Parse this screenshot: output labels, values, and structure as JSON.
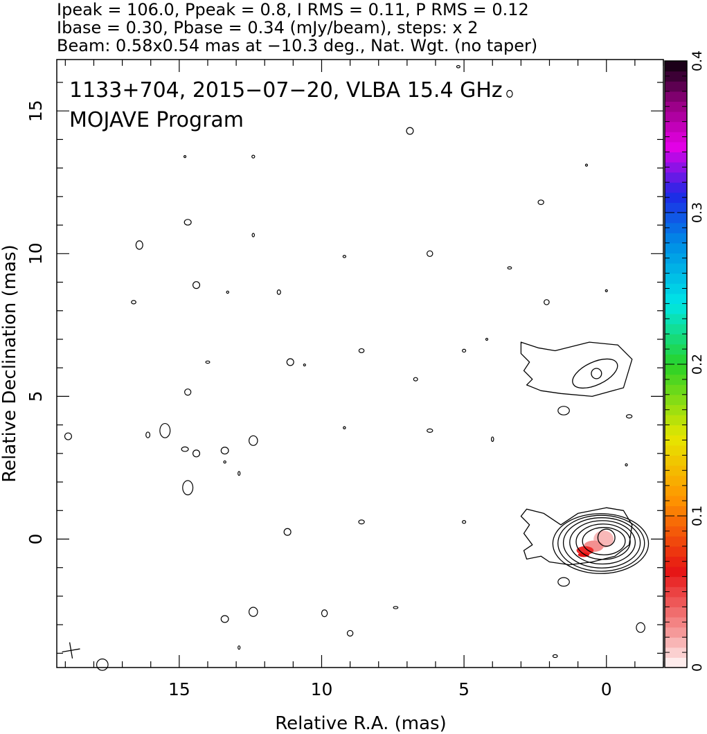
{
  "header": {
    "line1": "Ipeak = 106.0, Ppeak = 0.8, I RMS = 0.11, P RMS = 0.12",
    "line2": "Ibase = 0.30, Pbase = 0.34 (mJy/beam), steps: x 2",
    "line3": "Beam: 0.58x0.54 mas at −10.3 deg., Nat. Wgt. (no taper)"
  },
  "plot_labels": {
    "source_line": "1133+704, 2015−07−20, VLBA 15.4 GHz",
    "program_line": "MOJAVE Program"
  },
  "colorbar": {
    "ticks": [
      "0",
      "0.1",
      "0.2",
      "0.3",
      "0.4"
    ],
    "range": [
      0,
      0.4
    ]
  },
  "chart_data": {
    "type": "contour",
    "title": "1133+704, 2015−07−20, VLBA 15.4 GHz",
    "xlabel": "Relative R.A. (mas)",
    "ylabel": "Relative Declination (mas)",
    "xlim": [
      19.3,
      -2.0
    ],
    "ylim": [
      -4.5,
      16.8
    ],
    "xticks": [
      15,
      10,
      5,
      0
    ],
    "yticks": [
      15,
      10,
      5,
      0
    ],
    "xtick_labels": [
      "15",
      "10",
      "5",
      "0"
    ],
    "ytick_labels": [
      "15",
      "10",
      "5",
      "0"
    ],
    "contour_base_mjy_per_beam": 0.3,
    "contour_step_factor": 2,
    "peak_mjy_per_beam": 106.0,
    "beam": {
      "major_mas": 0.58,
      "minor_mas": 0.54,
      "pa_deg": -10.3,
      "x": 18.8,
      "y": -3.9
    },
    "core": {
      "x": 0.0,
      "y": 0.0,
      "contour_levels": [
        {
          "rx": 0.75,
          "ry": 0.48
        },
        {
          "rx": 0.95,
          "ry": 0.62
        },
        {
          "rx": 1.15,
          "ry": 0.76
        },
        {
          "rx": 1.35,
          "ry": 0.88
        },
        {
          "rx": 1.52,
          "ry": 0.98
        },
        {
          "rx": 1.68,
          "ry": 1.05
        }
      ]
    },
    "outer_core_outline": [
      [
        -0.9,
        0.5
      ],
      [
        -0.6,
        1.0
      ],
      [
        0.0,
        1.1
      ],
      [
        1.0,
        0.9
      ],
      [
        1.6,
        0.5
      ],
      [
        2.2,
        0.9
      ],
      [
        2.8,
        1.05
      ],
      [
        3.0,
        0.8
      ],
      [
        2.7,
        0.5
      ],
      [
        2.9,
        0.2
      ],
      [
        2.6,
        -0.2
      ],
      [
        2.9,
        -0.4
      ],
      [
        2.8,
        -0.7
      ],
      [
        2.3,
        -0.6
      ],
      [
        2.0,
        -0.8
      ],
      [
        1.3,
        -0.9
      ],
      [
        0.5,
        -0.8
      ],
      [
        -0.3,
        -0.6
      ],
      [
        -0.8,
        -0.2
      ],
      [
        -0.9,
        0.5
      ]
    ],
    "ghost_outline": [
      [
        -0.9,
        6.3
      ],
      [
        -0.4,
        6.8
      ],
      [
        0.6,
        6.9
      ],
      [
        1.8,
        6.6
      ],
      [
        2.4,
        6.7
      ],
      [
        3.0,
        6.9
      ],
      [
        3.0,
        6.5
      ],
      [
        2.7,
        6.2
      ],
      [
        2.9,
        5.9
      ],
      [
        2.6,
        5.6
      ],
      [
        2.8,
        5.4
      ],
      [
        2.3,
        5.2
      ],
      [
        1.6,
        5.1
      ],
      [
        0.5,
        5.0
      ],
      [
        -0.6,
        5.3
      ],
      [
        -0.9,
        6.3
      ]
    ],
    "ghost_inner_ellipse": {
      "x": 0.4,
      "y": 5.8,
      "rx": 0.85,
      "ry": 0.4
    },
    "ghost_peak_ellipse": {
      "x": 0.35,
      "y": 5.8,
      "rx": 0.18,
      "ry": 0.18
    },
    "polarization_spots": [
      {
        "x": 0.1,
        "y": 0.0,
        "rx": 0.35,
        "ry": 0.3,
        "color": "#f8b8b8"
      },
      {
        "x": 0.45,
        "y": -0.25,
        "rx": 0.35,
        "ry": 0.2,
        "color": "#f39090"
      },
      {
        "x": 0.75,
        "y": -0.4,
        "rx": 0.3,
        "ry": 0.15,
        "color": "#ee2a2a"
      },
      {
        "x": 0.8,
        "y": -0.55,
        "rx": 0.2,
        "ry": 0.08,
        "color": "#e81010"
      }
    ],
    "noise_contours": [
      {
        "x": 14.7,
        "y": 11.1,
        "rx": 0.12,
        "ry": 0.1
      },
      {
        "x": 14.4,
        "y": 8.9,
        "rx": 0.12,
        "ry": 0.12
      },
      {
        "x": 16.6,
        "y": 8.3,
        "rx": 0.08,
        "ry": 0.06
      },
      {
        "x": 16.4,
        "y": 10.3,
        "rx": 0.12,
        "ry": 0.15
      },
      {
        "x": 12.4,
        "y": 10.65,
        "rx": 0.04,
        "ry": 0.06
      },
      {
        "x": 13.3,
        "y": 8.65,
        "rx": 0.04,
        "ry": 0.04
      },
      {
        "x": 11.5,
        "y": 8.65,
        "rx": 0.06,
        "ry": 0.08
      },
      {
        "x": 9.2,
        "y": 9.9,
        "rx": 0.05,
        "ry": 0.04
      },
      {
        "x": 6.2,
        "y": 10.0,
        "rx": 0.1,
        "ry": 0.1
      },
      {
        "x": 6.9,
        "y": 14.3,
        "rx": 0.12,
        "ry": 0.12
      },
      {
        "x": 12.4,
        "y": 13.4,
        "rx": 0.05,
        "ry": 0.05
      },
      {
        "x": 3.4,
        "y": 9.5,
        "rx": 0.07,
        "ry": 0.04
      },
      {
        "x": 2.3,
        "y": 11.8,
        "rx": 0.1,
        "ry": 0.08
      },
      {
        "x": 2.1,
        "y": 8.3,
        "rx": 0.09,
        "ry": 0.09
      },
      {
        "x": 11.1,
        "y": 6.2,
        "rx": 0.12,
        "ry": 0.12
      },
      {
        "x": 8.6,
        "y": 6.6,
        "rx": 0.09,
        "ry": 0.07
      },
      {
        "x": 6.7,
        "y": 5.6,
        "rx": 0.07,
        "ry": 0.06
      },
      {
        "x": 5.0,
        "y": 6.6,
        "rx": 0.06,
        "ry": 0.05
      },
      {
        "x": 14.7,
        "y": 5.15,
        "rx": 0.11,
        "ry": 0.11
      },
      {
        "x": 15.5,
        "y": 3.8,
        "rx": 0.18,
        "ry": 0.25
      },
      {
        "x": 16.1,
        "y": 3.65,
        "rx": 0.07,
        "ry": 0.1
      },
      {
        "x": 18.9,
        "y": 3.6,
        "rx": 0.12,
        "ry": 0.12
      },
      {
        "x": 14.4,
        "y": 3.0,
        "rx": 0.12,
        "ry": 0.12
      },
      {
        "x": 14.8,
        "y": 3.15,
        "rx": 0.12,
        "ry": 0.08
      },
      {
        "x": 13.4,
        "y": 3.1,
        "rx": 0.13,
        "ry": 0.12
      },
      {
        "x": 12.4,
        "y": 3.45,
        "rx": 0.15,
        "ry": 0.17
      },
      {
        "x": 13.4,
        "y": 2.7,
        "rx": 0.04,
        "ry": 0.04
      },
      {
        "x": 12.9,
        "y": 2.3,
        "rx": 0.03,
        "ry": 0.07
      },
      {
        "x": 9.2,
        "y": 3.9,
        "rx": 0.04,
        "ry": 0.04
      },
      {
        "x": 6.2,
        "y": 3.8,
        "rx": 0.1,
        "ry": 0.06
      },
      {
        "x": 4.0,
        "y": 3.5,
        "rx": 0.04,
        "ry": 0.08
      },
      {
        "x": 14.7,
        "y": 1.8,
        "rx": 0.18,
        "ry": 0.25
      },
      {
        "x": 11.2,
        "y": 0.25,
        "rx": 0.12,
        "ry": 0.12
      },
      {
        "x": 8.6,
        "y": 0.6,
        "rx": 0.1,
        "ry": 0.07
      },
      {
        "x": 5.0,
        "y": 0.6,
        "rx": 0.06,
        "ry": 0.05
      },
      {
        "x": 1.5,
        "y": 4.5,
        "rx": 0.2,
        "ry": 0.15
      },
      {
        "x": 1.5,
        "y": -1.5,
        "rx": 0.2,
        "ry": 0.15
      },
      {
        "x": -0.8,
        "y": 4.3,
        "rx": 0.1,
        "ry": 0.06
      },
      {
        "x": -0.7,
        "y": 2.6,
        "rx": 0.03,
        "ry": 0.04
      },
      {
        "x": -1.2,
        "y": -3.1,
        "rx": 0.15,
        "ry": 0.17
      },
      {
        "x": 13.4,
        "y": -2.8,
        "rx": 0.13,
        "ry": 0.12
      },
      {
        "x": 12.4,
        "y": -2.55,
        "rx": 0.15,
        "ry": 0.16
      },
      {
        "x": 9.9,
        "y": -2.6,
        "rx": 0.1,
        "ry": 0.12
      },
      {
        "x": 9.0,
        "y": -3.3,
        "rx": 0.1,
        "ry": 0.1
      },
      {
        "x": 7.4,
        "y": -2.4,
        "rx": 0.08,
        "ry": 0.04
      },
      {
        "x": 12.9,
        "y": -3.8,
        "rx": 0.03,
        "ry": 0.06
      },
      {
        "x": 1.8,
        "y": -4.1,
        "rx": 0.08,
        "ry": 0.05
      },
      {
        "x": 17.7,
        "y": -4.4,
        "rx": 0.2,
        "ry": 0.2
      },
      {
        "x": 14.0,
        "y": 6.2,
        "rx": 0.07,
        "ry": 0.04
      },
      {
        "x": 4.2,
        "y": 7.0,
        "rx": 0.02,
        "ry": 0.02
      },
      {
        "x": 10.6,
        "y": 6.1,
        "rx": 0.02,
        "ry": 0.02
      },
      {
        "x": 14.8,
        "y": 13.4,
        "rx": 0.02,
        "ry": 0.02
      },
      {
        "x": 0.7,
        "y": 13.1,
        "rx": 0.02,
        "ry": 0.02
      },
      {
        "x": 0.0,
        "y": 8.7,
        "rx": 0.02,
        "ry": 0.02
      },
      {
        "x": 5.2,
        "y": 16.55,
        "rx": 0.06,
        "ry": 0.04
      },
      {
        "x": 3.4,
        "y": 15.6,
        "rx": 0.1,
        "ry": 0.12
      }
    ]
  }
}
